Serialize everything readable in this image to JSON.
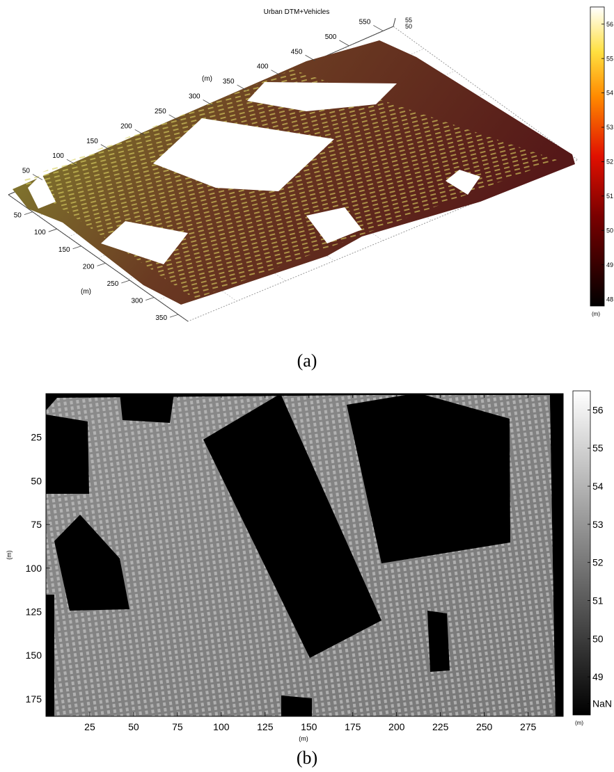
{
  "chart_data": [
    {
      "type": "surface3d",
      "title": "Urban DTM+Vehicles",
      "caption": "(a)",
      "axis_label": "(m)",
      "colorbar_unit": "(m)",
      "colormap": "hot",
      "x_ticks": [
        "50",
        "100",
        "150",
        "200",
        "250",
        "300",
        "350",
        "400",
        "450",
        "500",
        "550"
      ],
      "y_ticks": [
        "50",
        "100",
        "150",
        "200",
        "250",
        "300",
        "350"
      ],
      "z_ticks": [
        "50",
        "55"
      ],
      "colorbar_ticks": [
        "56",
        "55",
        "54",
        "53",
        "52",
        "51",
        "50",
        "49",
        "48"
      ],
      "colorbar_range": [
        47.8,
        56.5
      ]
    },
    {
      "type": "heatmap",
      "caption": "(b)",
      "xlabel": "(m)",
      "ylabel": "(m)",
      "colormap": "gray",
      "colorbar_unit": "(m)",
      "x_ticks": [
        "25",
        "50",
        "75",
        "100",
        "125",
        "150",
        "175",
        "200",
        "225",
        "250",
        "275"
      ],
      "y_ticks": [
        "25",
        "50",
        "75",
        "100",
        "125",
        "150",
        "175"
      ],
      "xlim": [
        0,
        295
      ],
      "ylim": [
        185,
        0
      ],
      "colorbar_ticks": [
        "56",
        "55",
        "54",
        "53",
        "52",
        "51",
        "50",
        "49",
        "NaN"
      ],
      "colorbar_range": [
        48,
        56.5
      ]
    }
  ]
}
